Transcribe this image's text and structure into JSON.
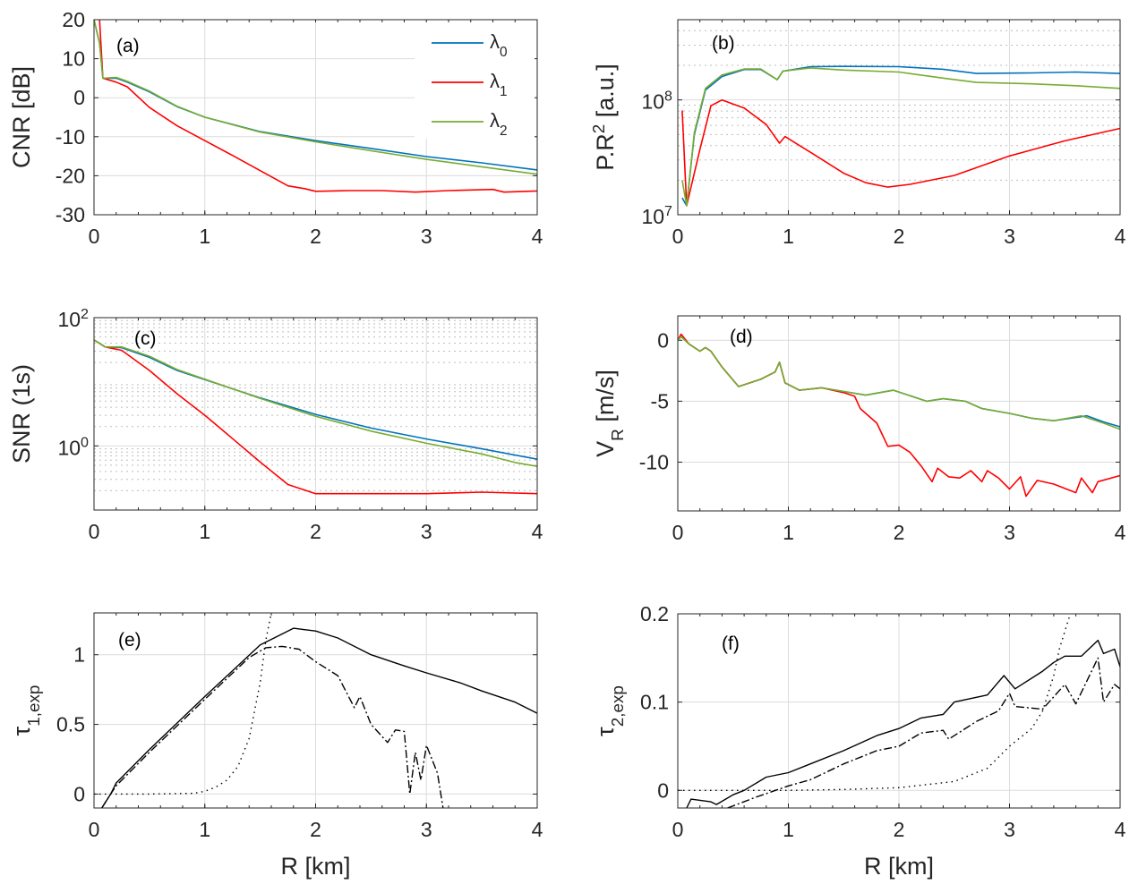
{
  "colors": {
    "lambda0": "#0072BD",
    "lambda1": "#FF0000",
    "lambda2": "#77AC30",
    "black": "#000000",
    "grid": "#dcdcdc"
  },
  "chart_data": [
    {
      "id": "a",
      "type": "line",
      "panel_label": "(a)",
      "ylabel": [
        {
          "t": "CNR [dB]"
        }
      ],
      "xlabel": [],
      "xlim": [
        0,
        4
      ],
      "ylim": [
        -30,
        20
      ],
      "yscale": "linear",
      "xticks": [
        0,
        1,
        2,
        3,
        4
      ],
      "xtick_labels": [
        "0",
        "1",
        "2",
        "3",
        "4"
      ],
      "yticks": [
        -30,
        -20,
        -10,
        0,
        10,
        20
      ],
      "ytick_labels": [
        "-30",
        "-20",
        "-10",
        "0",
        "10",
        "20"
      ],
      "grid": "major",
      "legend": "top-right",
      "series": [
        {
          "name": "λ0",
          "name_base": "λ",
          "name_sub": "0",
          "color": "lambda0",
          "style": "solid",
          "x": [
            0,
            0.05,
            0.08,
            0.2,
            0.3,
            0.5,
            0.75,
            1,
            1.5,
            2,
            2.5,
            3,
            3.5,
            4
          ],
          "y": [
            20,
            14,
            5,
            5,
            4,
            1.5,
            -2.3,
            -5,
            -8.7,
            -11,
            -13,
            -15.1,
            -16.7,
            -18.5
          ]
        },
        {
          "name": "λ1",
          "name_base": "λ",
          "name_sub": "1",
          "color": "lambda1",
          "style": "solid",
          "x": [
            0.05,
            0.08,
            0.2,
            0.3,
            0.5,
            0.75,
            1,
            1.25,
            1.5,
            1.75,
            1.9,
            2,
            2.3,
            2.6,
            2.9,
            3.2,
            3.6,
            3.7,
            4
          ],
          "y": [
            20,
            5,
            4,
            2.8,
            -2.5,
            -7.2,
            -11,
            -14.8,
            -18.7,
            -22.6,
            -23.3,
            -24,
            -23.8,
            -23.8,
            -24.2,
            -23.8,
            -23.5,
            -24.2,
            -23.9
          ]
        },
        {
          "name": "λ2",
          "name_base": "λ",
          "name_sub": "2",
          "color": "lambda2",
          "style": "solid",
          "x": [
            0,
            0.05,
            0.08,
            0.2,
            0.3,
            0.5,
            0.75,
            1,
            1.5,
            2,
            2.5,
            3,
            3.5,
            4
          ],
          "y": [
            20,
            14,
            5,
            5.2,
            4.2,
            1.7,
            -2.2,
            -5,
            -8.8,
            -11.3,
            -13.6,
            -15.8,
            -17.7,
            -19.6
          ]
        }
      ]
    },
    {
      "id": "b",
      "type": "line",
      "panel_label": "(b)",
      "ylabel": [
        {
          "t": "P.R"
        },
        {
          "t": "2",
          "s": "sup"
        },
        {
          "t": " [a.u.]"
        }
      ],
      "xlabel": [],
      "xlim": [
        0,
        4
      ],
      "ylim": [
        10000000,
        500000000
      ],
      "yscale": "log",
      "xticks": [
        0,
        1,
        2,
        3,
        4
      ],
      "xtick_labels": [
        "0",
        "1",
        "2",
        "3",
        "4"
      ],
      "yticks": [
        10000000,
        100000000
      ],
      "ytick_labels": [
        {
          "base": "10",
          "exp": "7"
        },
        {
          "base": "10",
          "exp": "8"
        }
      ],
      "grid": "major+minor-dotted",
      "series": [
        {
          "color": "lambda0",
          "style": "solid",
          "x": [
            0.04,
            0.08,
            0.15,
            0.25,
            0.4,
            0.6,
            0.75,
            0.9,
            0.95,
            1.2,
            1.5,
            2,
            2.4,
            2.7,
            3.2,
            3.6,
            4
          ],
          "y": [
            14000000,
            12000000,
            50000000,
            122000000,
            160000000,
            184000000,
            184000000,
            150000000,
            178000000,
            195000000,
            196000000,
            195000000,
            185000000,
            170000000,
            172000000,
            175000000,
            170000000
          ]
        },
        {
          "color": "lambda1",
          "style": "solid",
          "x": [
            0.04,
            0.08,
            0.2,
            0.3,
            0.4,
            0.6,
            0.8,
            0.92,
            0.97,
            1.2,
            1.5,
            1.7,
            1.9,
            2.1,
            2.5,
            3,
            3.5,
            4
          ],
          "y": [
            81000000,
            12000000,
            37000000,
            89000000,
            100000000,
            85000000,
            61000000,
            42000000,
            48000000,
            35000000,
            23000000,
            19000000,
            17400000,
            18400000,
            22000000,
            32500000,
            44000000,
            56500000
          ]
        },
        {
          "color": "lambda2",
          "style": "solid",
          "x": [
            0.04,
            0.08,
            0.15,
            0.25,
            0.4,
            0.6,
            0.75,
            0.9,
            0.95,
            1.2,
            1.5,
            2,
            2.4,
            2.7,
            3.2,
            3.6,
            4
          ],
          "y": [
            20000000,
            12000000,
            52000000,
            126000000,
            165000000,
            186000000,
            186000000,
            150000000,
            178000000,
            190000000,
            182000000,
            175000000,
            155000000,
            142000000,
            138000000,
            133000000,
            126000000
          ]
        }
      ]
    },
    {
      "id": "c",
      "type": "line",
      "panel_label": "(c)",
      "ylabel": [
        {
          "t": "SNR (1s)"
        }
      ],
      "xlabel": [],
      "xlim": [
        0,
        4
      ],
      "ylim": [
        0.1,
        100
      ],
      "yscale": "log",
      "xticks": [
        0,
        1,
        2,
        3,
        4
      ],
      "xtick_labels": [
        "0",
        "1",
        "2",
        "3",
        "4"
      ],
      "yticks": [
        1,
        100
      ],
      "ytick_labels": [
        {
          "base": "10",
          "exp": "0"
        },
        {
          "base": "10",
          "exp": "2"
        }
      ],
      "grid": "major+minor-dotted",
      "series": [
        {
          "color": "lambda0",
          "style": "solid",
          "x": [
            0,
            0.1,
            0.25,
            0.5,
            0.75,
            1,
            1.5,
            2,
            2.5,
            3,
            3.5,
            4
          ],
          "y": [
            45,
            35,
            34,
            24,
            15,
            10.8,
            5.6,
            3.1,
            1.9,
            1.28,
            0.9,
            0.62
          ]
        },
        {
          "color": "lambda1",
          "style": "solid",
          "x": [
            0,
            0.1,
            0.25,
            0.5,
            0.75,
            1,
            1.25,
            1.5,
            1.75,
            2,
            2.5,
            3,
            3.5,
            4
          ],
          "y": [
            45,
            35,
            31,
            15,
            6.5,
            3.0,
            1.3,
            0.56,
            0.25,
            0.18,
            0.18,
            0.18,
            0.19,
            0.18
          ]
        },
        {
          "color": "lambda2",
          "style": "solid",
          "x": [
            0,
            0.1,
            0.25,
            0.5,
            0.75,
            1,
            1.5,
            2,
            2.5,
            3,
            3.5,
            3.8,
            4
          ],
          "y": [
            45,
            35,
            35,
            25,
            15.5,
            11,
            5.5,
            2.9,
            1.7,
            1.1,
            0.75,
            0.55,
            0.48
          ]
        }
      ]
    },
    {
      "id": "d",
      "type": "line",
      "panel_label": "(d)",
      "ylabel": [
        {
          "t": "V"
        },
        {
          "t": "R",
          "s": "sub"
        },
        {
          "t": " [m/s]"
        }
      ],
      "xlabel": [],
      "xlim": [
        0,
        4
      ],
      "ylim": [
        -14,
        2
      ],
      "yscale": "linear",
      "xticks": [
        0,
        1,
        2,
        3,
        4
      ],
      "xtick_labels": [
        "0",
        "1",
        "2",
        "3",
        "4"
      ],
      "yticks": [
        -10,
        -5,
        0
      ],
      "ytick_labels": [
        "-10",
        "-5",
        "0"
      ],
      "grid": "major",
      "series": [
        {
          "color": "lambda0",
          "style": "solid",
          "x": [
            0,
            0.03,
            0.1,
            0.2,
            0.25,
            0.3,
            0.4,
            0.55,
            0.75,
            0.88,
            0.92,
            0.97,
            1.1,
            1.3,
            1.5,
            1.7,
            1.95,
            2.25,
            2.4,
            2.6,
            2.75,
            3,
            3.2,
            3.4,
            3.7,
            3.85,
            4
          ],
          "y": [
            0,
            0.3,
            -0.3,
            -0.9,
            -0.6,
            -0.9,
            -2.2,
            -3.8,
            -3.2,
            -2.6,
            -1.8,
            -3.5,
            -4.1,
            -3.9,
            -4.2,
            -4.5,
            -4.1,
            -5,
            -4.8,
            -5,
            -5.6,
            -6,
            -6.4,
            -6.6,
            -6.2,
            -6.7,
            -7.1
          ]
        },
        {
          "color": "lambda1",
          "style": "solid",
          "x": [
            0,
            0.03,
            0.1,
            0.2,
            0.25,
            0.3,
            0.4,
            0.55,
            0.75,
            0.88,
            0.92,
            0.97,
            1.1,
            1.3,
            1.5,
            1.6,
            1.65,
            1.8,
            1.9,
            2.0,
            2.1,
            2.2,
            2.3,
            2.35,
            2.45,
            2.55,
            2.65,
            2.75,
            2.8,
            2.9,
            3.0,
            3.1,
            3.15,
            3.25,
            3.4,
            3.6,
            3.65,
            3.75,
            3.8,
            4
          ],
          "y": [
            0,
            0.5,
            -0.3,
            -0.9,
            -0.6,
            -0.9,
            -2.2,
            -3.8,
            -3.2,
            -2.6,
            -1.8,
            -3.5,
            -4.1,
            -3.9,
            -4.3,
            -4.6,
            -5.6,
            -6.8,
            -8.7,
            -8.6,
            -9.2,
            -10.3,
            -11.6,
            -10.5,
            -11.2,
            -11.3,
            -10.7,
            -11.6,
            -10.7,
            -11.3,
            -12.2,
            -11.2,
            -12.8,
            -11.5,
            -11.8,
            -12.5,
            -11.3,
            -12.5,
            -11.6,
            -11.1
          ]
        },
        {
          "color": "lambda2",
          "style": "solid",
          "x": [
            0,
            0.03,
            0.1,
            0.2,
            0.25,
            0.3,
            0.4,
            0.55,
            0.75,
            0.88,
            0.92,
            0.97,
            1.1,
            1.3,
            1.5,
            1.7,
            1.95,
            2.25,
            2.4,
            2.6,
            2.75,
            3,
            3.2,
            3.4,
            3.65,
            3.85,
            4
          ],
          "y": [
            0,
            0.3,
            -0.3,
            -0.9,
            -0.6,
            -0.9,
            -2.2,
            -3.8,
            -3.2,
            -2.6,
            -1.8,
            -3.5,
            -4.1,
            -3.9,
            -4.2,
            -4.5,
            -4.1,
            -5,
            -4.8,
            -5,
            -5.6,
            -6,
            -6.4,
            -6.6,
            -6.2,
            -6.8,
            -7.3
          ]
        }
      ]
    },
    {
      "id": "e",
      "type": "line",
      "panel_label": "(e)",
      "ylabel": [
        {
          "t": "τ"
        },
        {
          "t": "1,exp",
          "s": "sub"
        }
      ],
      "xlabel": [
        {
          "t": "R [km]"
        }
      ],
      "xlim": [
        0,
        4
      ],
      "ylim": [
        -0.1,
        1.3
      ],
      "yscale": "linear",
      "xticks": [
        0,
        1,
        2,
        3,
        4
      ],
      "xtick_labels": [
        "0",
        "1",
        "2",
        "3",
        "4"
      ],
      "yticks": [
        0,
        0.5,
        1
      ],
      "ytick_labels": [
        "0",
        "0.5",
        "1"
      ],
      "grid": "major",
      "series": [
        {
          "color": "black",
          "style": "solid",
          "x": [
            0.07,
            0.15,
            0.2,
            0.5,
            1,
            1.5,
            1.7,
            1.8,
            1.9,
            2,
            2.2,
            2.5,
            2.8,
            3,
            3.3,
            3.5,
            3.8,
            4
          ],
          "y": [
            -0.1,
            0,
            0.08,
            0.32,
            0.7,
            1.07,
            1.15,
            1.19,
            1.18,
            1.17,
            1.12,
            1.0,
            0.92,
            0.87,
            0.8,
            0.74,
            0.66,
            0.58
          ]
        },
        {
          "color": "black",
          "style": "dashdot",
          "x": [
            0.07,
            0.15,
            0.2,
            0.5,
            1,
            1.4,
            1.55,
            1.7,
            1.85,
            2,
            2.2,
            2.35,
            2.4,
            2.5,
            2.65,
            2.72,
            2.8,
            2.85,
            2.9,
            2.95,
            3.0,
            3.1,
            3.15
          ],
          "y": [
            -0.1,
            0,
            0.06,
            0.3,
            0.68,
            0.98,
            1.05,
            1.06,
            1.04,
            0.95,
            0.85,
            0.62,
            0.7,
            0.5,
            0.37,
            0.46,
            0.45,
            0.0,
            0.3,
            0.1,
            0.35,
            0.15,
            -0.1
          ]
        },
        {
          "color": "black",
          "style": "dotted",
          "x": [
            0,
            0.5,
            0.9,
            1,
            1.1,
            1.2,
            1.3,
            1.4,
            1.45,
            1.5,
            1.55,
            1.6
          ],
          "y": [
            0,
            0,
            0.005,
            0.02,
            0.05,
            0.1,
            0.2,
            0.4,
            0.6,
            0.8,
            1.1,
            1.3
          ]
        }
      ]
    },
    {
      "id": "f",
      "type": "line",
      "panel_label": "(f)",
      "ylabel": [
        {
          "t": "τ"
        },
        {
          "t": "2,exp",
          "s": "sub"
        }
      ],
      "xlabel": [
        {
          "t": "R [km]"
        }
      ],
      "xlim": [
        0,
        4
      ],
      "ylim": [
        -0.02,
        0.2
      ],
      "yscale": "linear",
      "xticks": [
        0,
        1,
        2,
        3,
        4
      ],
      "xtick_labels": [
        "0",
        "1",
        "2",
        "3",
        "4"
      ],
      "yticks": [
        0,
        0.1,
        0.2
      ],
      "ytick_labels": [
        "0",
        "0.1",
        "0.2"
      ],
      "grid": "major",
      "series": [
        {
          "color": "black",
          "style": "solid",
          "x": [
            0.08,
            0.12,
            0.3,
            0.35,
            0.5,
            0.6,
            0.8,
            1,
            1.2,
            1.5,
            1.8,
            2,
            2.2,
            2.4,
            2.5,
            2.8,
            2.95,
            3.05,
            3.3,
            3.4,
            3.5,
            3.65,
            3.8,
            3.85,
            3.95,
            4
          ],
          "y": [
            -0.02,
            -0.01,
            -0.013,
            -0.016,
            -0.005,
            0,
            0.015,
            0.02,
            0.03,
            0.045,
            0.062,
            0.07,
            0.082,
            0.086,
            0.1,
            0.108,
            0.13,
            0.115,
            0.135,
            0.145,
            0.152,
            0.152,
            0.17,
            0.155,
            0.16,
            0.14
          ]
        },
        {
          "color": "black",
          "style": "dashdot",
          "x": [
            0.45,
            0.7,
            1,
            1.2,
            1.5,
            1.8,
            2,
            2.2,
            2.4,
            2.45,
            2.7,
            2.9,
            3.0,
            3.05,
            3.3,
            3.5,
            3.6,
            3.8,
            3.85,
            3.95,
            4
          ],
          "y": [
            -0.02,
            -0.008,
            0.005,
            0.012,
            0.03,
            0.045,
            0.05,
            0.065,
            0.068,
            0.058,
            0.078,
            0.09,
            0.11,
            0.095,
            0.092,
            0.12,
            0.098,
            0.15,
            0.1,
            0.12,
            0.115
          ]
        },
        {
          "color": "black",
          "style": "dotted",
          "x": [
            0,
            1,
            1.5,
            2,
            2.5,
            2.8,
            3,
            3.1,
            3.2,
            3.3,
            3.4,
            3.45,
            3.55
          ],
          "y": [
            0,
            0,
            0.001,
            0.003,
            0.01,
            0.025,
            0.05,
            0.06,
            0.07,
            0.09,
            0.13,
            0.16,
            0.2
          ]
        }
      ]
    }
  ]
}
